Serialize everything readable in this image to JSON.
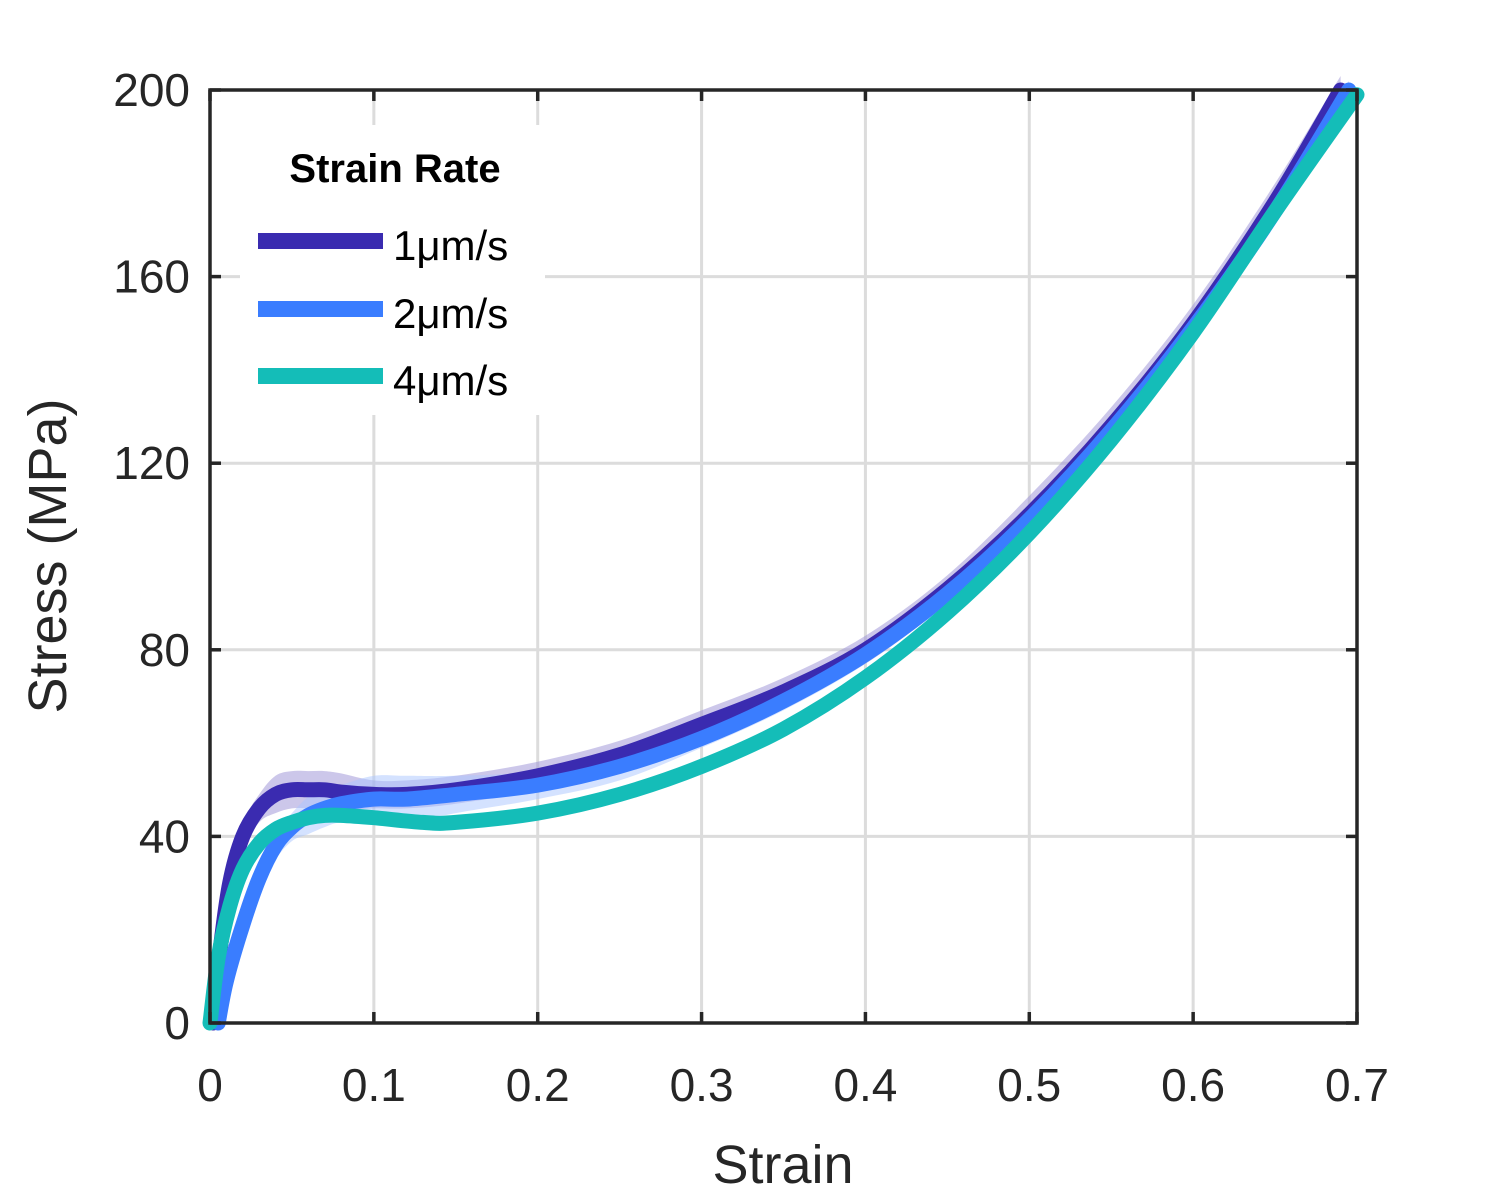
{
  "chart_data": {
    "type": "line",
    "title": "",
    "xlabel": "Strain",
    "ylabel": "Stress (MPa)",
    "xlim": [
      0,
      0.7
    ],
    "ylim": [
      0,
      200
    ],
    "xticks": [
      0,
      0.1,
      0.2,
      0.3,
      0.4,
      0.5,
      0.6,
      0.7
    ],
    "xtick_labels": [
      "0",
      "0.1",
      "0.2",
      "0.3",
      "0.4",
      "0.5",
      "0.6",
      "0.7"
    ],
    "yticks": [
      0,
      40,
      80,
      120,
      160,
      200
    ],
    "ytick_labels": [
      "0",
      "40",
      "80",
      "120",
      "160",
      "200"
    ],
    "grid": true,
    "legend": {
      "title": "Strain Rate",
      "position": "top-left"
    },
    "series": [
      {
        "name": "1μm/s",
        "color": "#3a2bb0",
        "band_color": "#9a90d6",
        "x": [
          0.002,
          0.006,
          0.012,
          0.02,
          0.03,
          0.04,
          0.05,
          0.06,
          0.07,
          0.08,
          0.1,
          0.12,
          0.15,
          0.2,
          0.25,
          0.3,
          0.35,
          0.4,
          0.45,
          0.5,
          0.55,
          0.6,
          0.65,
          0.69
        ],
        "y": [
          0,
          15,
          30,
          40,
          46,
          49,
          50,
          50,
          50,
          49.5,
          49,
          49,
          50,
          53,
          57.5,
          64,
          71,
          80,
          93,
          109,
          128,
          150,
          176,
          200
        ],
        "band": [
          0,
          2,
          3,
          3,
          3,
          4,
          4,
          4,
          4,
          4,
          3,
          3,
          3,
          3,
          3,
          3,
          3,
          3,
          3,
          4,
          4,
          4,
          4,
          3
        ]
      },
      {
        "name": "2μm/s",
        "color": "#3a7dff",
        "band_color": "#a9c6ff",
        "x": [
          0.005,
          0.01,
          0.02,
          0.03,
          0.04,
          0.05,
          0.06,
          0.07,
          0.08,
          0.1,
          0.12,
          0.15,
          0.2,
          0.25,
          0.3,
          0.35,
          0.4,
          0.45,
          0.5,
          0.55,
          0.6,
          0.65,
          0.695
        ],
        "y": [
          0,
          9,
          21,
          31,
          38,
          42,
          44.5,
          46,
          47,
          48,
          48,
          49,
          51,
          55,
          61,
          69,
          79,
          92,
          108,
          127,
          149,
          174,
          200
        ],
        "band": [
          0,
          1,
          2,
          3,
          3,
          3,
          4,
          4,
          4,
          5,
          5,
          4,
          3,
          3,
          2,
          2,
          2,
          2,
          2,
          2,
          2,
          2,
          2
        ]
      },
      {
        "name": "4μm/s",
        "color": "#14bdb8",
        "band_color": "#8fdedb",
        "x": [
          0,
          0.005,
          0.012,
          0.02,
          0.03,
          0.04,
          0.05,
          0.06,
          0.07,
          0.08,
          0.1,
          0.13,
          0.15,
          0.2,
          0.25,
          0.3,
          0.35,
          0.4,
          0.45,
          0.5,
          0.55,
          0.6,
          0.65,
          0.7
        ],
        "y": [
          0,
          14,
          25,
          33,
          38.5,
          41.5,
          43,
          44,
          44.5,
          44.5,
          44,
          43,
          43,
          45,
          49,
          55,
          63,
          74,
          88,
          105,
          125,
          148,
          174,
          199
        ],
        "band": [
          0,
          1,
          1,
          1,
          1,
          1,
          1,
          1,
          1,
          1,
          1,
          1,
          1,
          1,
          1,
          1,
          1,
          1,
          1,
          1,
          1,
          1,
          1,
          1
        ]
      }
    ]
  }
}
